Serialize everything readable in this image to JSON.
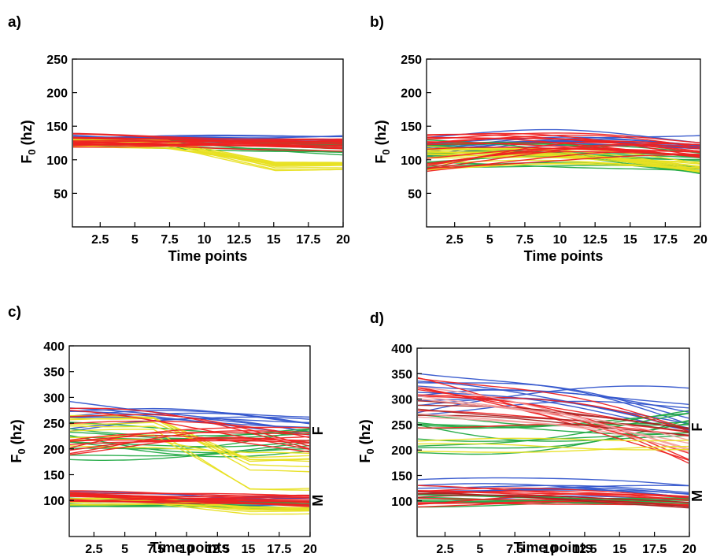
{
  "chart_data": [
    {
      "type": "line",
      "panel_label": "a)",
      "xlabel": "Time points",
      "ylabel": "F0 (hz)",
      "ylabel_main": "F",
      "ylabel_sub": "0",
      "ylabel_unit": " (hz)",
      "xlim": [
        0.5,
        20
      ],
      "ylim": [
        0,
        250
      ],
      "xticks": [
        2.5,
        5,
        7.5,
        10,
        12.5,
        15,
        17.5,
        20
      ],
      "yticks": [
        50,
        100,
        150,
        200,
        250
      ],
      "grid": false,
      "side_labels": [],
      "series": [
        {
          "color": "#3355cc",
          "count": 10,
          "start": [
            126,
            139
          ],
          "end": [
            118,
            139
          ],
          "shape": "flat",
          "noise": 1.5,
          "seed": 11
        },
        {
          "color": "#22aa44",
          "count": 12,
          "start": [
            118,
            133
          ],
          "end": [
            108,
            128
          ],
          "shape": "flat",
          "noise": 1.5,
          "seed": 12
        },
        {
          "color": "#e8e022",
          "count": 12,
          "start": [
            118,
            132
          ],
          "end": [
            84,
            96
          ],
          "shape": "fall-mid",
          "noise": 1.2,
          "seed": 13
        },
        {
          "color": "#ee2222",
          "count": 16,
          "start": [
            120,
            138
          ],
          "end": [
            110,
            130
          ],
          "shape": "flat",
          "noise": 1.5,
          "seed": 14
        }
      ]
    },
    {
      "type": "line",
      "panel_label": "b)",
      "xlabel": "Time points",
      "ylabel": "F0 (hz)",
      "ylabel_main": "F",
      "ylabel_sub": "0",
      "ylabel_unit": " (hz)",
      "xlim": [
        0.5,
        20
      ],
      "ylim": [
        0,
        250
      ],
      "xticks": [
        2.5,
        5,
        7.5,
        10,
        12.5,
        15,
        17.5,
        20
      ],
      "yticks": [
        50,
        100,
        150,
        200,
        250
      ],
      "grid": false,
      "side_labels": [],
      "series": [
        {
          "color": "#3355cc",
          "count": 10,
          "start": [
            100,
            139
          ],
          "end": [
            112,
            137
          ],
          "shape": "hump",
          "noise": 2,
          "seed": 21
        },
        {
          "color": "#22aa44",
          "count": 14,
          "start": [
            88,
            130
          ],
          "end": [
            80,
            108
          ],
          "shape": "hump",
          "noise": 2,
          "seed": 22
        },
        {
          "color": "#e8e022",
          "count": 14,
          "start": [
            82,
            120
          ],
          "end": [
            78,
            98
          ],
          "shape": "hump",
          "noise": 2,
          "seed": 23
        },
        {
          "color": "#ee2222",
          "count": 18,
          "start": [
            80,
            138
          ],
          "end": [
            100,
            128
          ],
          "shape": "hump",
          "noise": 2,
          "seed": 24
        }
      ]
    },
    {
      "type": "line",
      "panel_label": "c)",
      "xlabel": "Time points",
      "ylabel": "F0 (hz)",
      "ylabel_main": "F",
      "ylabel_sub": "0",
      "ylabel_unit": " (hz)",
      "xlim": [
        0.5,
        20
      ],
      "ylim": [
        30,
        400
      ],
      "xticks": [
        2.5,
        5,
        7.5,
        10,
        12.5,
        15,
        17.5,
        20
      ],
      "yticks": [
        100,
        150,
        200,
        250,
        300,
        350,
        400
      ],
      "grid": false,
      "side_labels": [
        {
          "text": "F",
          "y": 235
        },
        {
          "text": "M",
          "y": 100
        }
      ],
      "series": [
        {
          "color": "#3355cc",
          "count": 9,
          "start": [
            235,
            292
          ],
          "end": [
            215,
            265
          ],
          "shape": "hump",
          "noise": 3,
          "seed": 31
        },
        {
          "color": "#22aa44",
          "count": 10,
          "start": [
            175,
            255
          ],
          "end": [
            195,
            240
          ],
          "shape": "dip",
          "noise": 3,
          "seed": 32
        },
        {
          "color": "#e8e022",
          "count": 9,
          "start": [
            195,
            265
          ],
          "end": [
            115,
            205
          ],
          "shape": "fall-mid",
          "noise": 3,
          "seed": 33
        },
        {
          "color": "#ee2222",
          "count": 12,
          "start": [
            185,
            280
          ],
          "end": [
            195,
            245
          ],
          "shape": "hump",
          "noise": 3,
          "seed": 34
        },
        {
          "color": "#3355cc",
          "count": 8,
          "start": [
            85,
            120
          ],
          "end": [
            90,
            112
          ],
          "shape": "flat",
          "noise": 1.5,
          "seed": 35
        },
        {
          "color": "#22aa44",
          "count": 8,
          "start": [
            80,
            112
          ],
          "end": [
            78,
            100
          ],
          "shape": "flat",
          "noise": 1.5,
          "seed": 36
        },
        {
          "color": "#e8e022",
          "count": 8,
          "start": [
            82,
            108
          ],
          "end": [
            62,
            88
          ],
          "shape": "fall-mid",
          "noise": 1.5,
          "seed": 37
        },
        {
          "color": "#ee2222",
          "count": 14,
          "start": [
            82,
            120
          ],
          "end": [
            85,
            110
          ],
          "shape": "flat",
          "noise": 1.5,
          "seed": 38
        }
      ]
    },
    {
      "type": "line",
      "panel_label": "d)",
      "xlabel": "Time points",
      "ylabel": "F0 (hz)",
      "ylabel_main": "F",
      "ylabel_sub": "0",
      "ylabel_unit": " (hz)",
      "xlim": [
        0.5,
        20
      ],
      "ylim": [
        30,
        400
      ],
      "xticks": [
        2.5,
        5,
        7.5,
        10,
        12.5,
        15,
        17.5,
        20
      ],
      "yticks": [
        100,
        150,
        200,
        250,
        300,
        350,
        400
      ],
      "grid": false,
      "side_labels": [
        {
          "text": "F",
          "y": 245
        },
        {
          "text": "M",
          "y": 110
        }
      ],
      "series": [
        {
          "color": "#3355cc",
          "count": 10,
          "start": [
            240,
            355
          ],
          "end": [
            235,
            340
          ],
          "shape": "hump",
          "noise": 4,
          "seed": 41
        },
        {
          "color": "#22aa44",
          "count": 10,
          "start": [
            190,
            270
          ],
          "end": [
            220,
            275
          ],
          "shape": "dip",
          "noise": 4,
          "seed": 42
        },
        {
          "color": "#ee2222",
          "count": 9,
          "start": [
            240,
            345
          ],
          "end": [
            160,
            260
          ],
          "shape": "hump",
          "noise": 4,
          "seed": 43
        },
        {
          "color": "#aa2222",
          "count": 4,
          "start": [
            260,
            300
          ],
          "end": [
            215,
            250
          ],
          "shape": "hump",
          "noise": 3,
          "seed": 44
        },
        {
          "color": "#f4a0a0",
          "count": 5,
          "start": [
            240,
            330
          ],
          "end": [
            190,
            250
          ],
          "shape": "hump",
          "noise": 3,
          "seed": 45
        },
        {
          "color": "#e8e022",
          "count": 3,
          "start": [
            190,
            220
          ],
          "end": [
            200,
            230
          ],
          "shape": "flat",
          "noise": 3,
          "seed": 46
        },
        {
          "color": "#3355cc",
          "count": 8,
          "start": [
            95,
            140
          ],
          "end": [
            95,
            130
          ],
          "shape": "hump",
          "noise": 2,
          "seed": 47
        },
        {
          "color": "#22aa44",
          "count": 8,
          "start": [
            85,
            115
          ],
          "end": [
            88,
            110
          ],
          "shape": "flat",
          "noise": 2,
          "seed": 48
        },
        {
          "color": "#ee2222",
          "count": 10,
          "start": [
            88,
            130
          ],
          "end": [
            78,
            110
          ],
          "shape": "hump",
          "noise": 2,
          "seed": 49
        },
        {
          "color": "#aa2222",
          "count": 3,
          "start": [
            100,
            125
          ],
          "end": [
            78,
            100
          ],
          "shape": "hump",
          "noise": 2,
          "seed": 50
        }
      ]
    }
  ]
}
